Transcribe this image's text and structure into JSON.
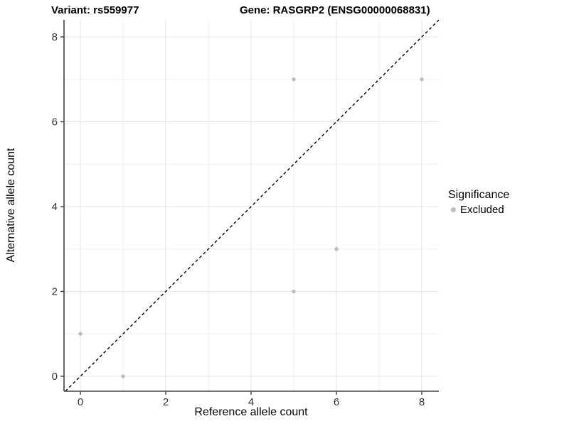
{
  "titles": {
    "variant": "Variant: rs559977",
    "gene": "Gene: RASGRP2 (ENSG00000068831)"
  },
  "chart_data": {
    "type": "scatter",
    "xlabel": "Reference allele count",
    "ylabel": "Alternative allele count",
    "xlim": [
      -0.4,
      8.4
    ],
    "ylim": [
      -0.4,
      8.4
    ],
    "x_ticks": [
      0,
      2,
      4,
      6,
      8
    ],
    "y_ticks": [
      0,
      2,
      4,
      6,
      8
    ],
    "x_minor_ticks": [
      1,
      3,
      5,
      7
    ],
    "y_minor_ticks": [
      1,
      3,
      5,
      7
    ],
    "grid": true,
    "legend_position": "right",
    "series": [
      {
        "name": "Excluded",
        "color": "#bdbdbd",
        "points": [
          [
            0,
            1
          ],
          [
            1,
            0
          ],
          [
            5,
            2
          ],
          [
            5,
            7
          ],
          [
            6,
            3
          ],
          [
            8,
            7
          ]
        ]
      }
    ],
    "reference_line": {
      "type": "identity-diagonal",
      "equation": "y = x",
      "style": "dashed",
      "color": "#000000"
    }
  },
  "legend": {
    "title": "Significance",
    "items": [
      {
        "label": "Excluded",
        "color": "#bdbdbd"
      }
    ]
  },
  "colors": {
    "background": "#ffffff",
    "grid_major": "#e3e3e3",
    "grid_minor": "#efefef",
    "axis_line": "#404040",
    "tick_text": "#333333",
    "point": "#bdbdbd"
  }
}
